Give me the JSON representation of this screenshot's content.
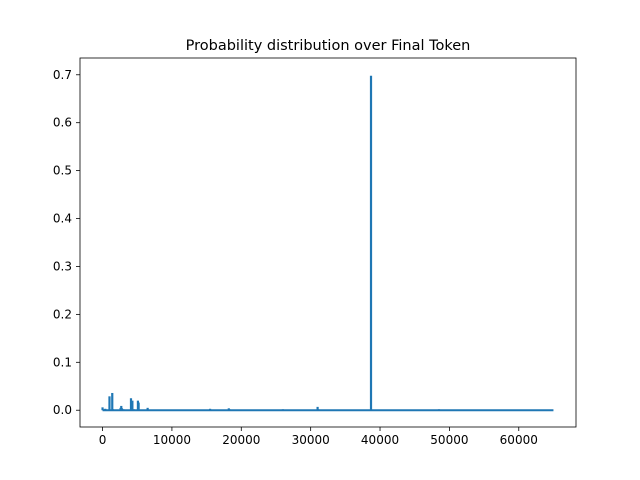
{
  "chart_data": {
    "type": "line",
    "title": "Probability distribution over Final Token",
    "xlabel": "",
    "ylabel": "",
    "xlim": [
      -3250,
      68250
    ],
    "ylim": [
      -0.035,
      0.735
    ],
    "grid": false,
    "legend": "none",
    "line_color": "#1f77b4",
    "x_ticks": [
      0,
      10000,
      20000,
      30000,
      40000,
      50000,
      60000
    ],
    "x_tick_labels": [
      "0",
      "10000",
      "20000",
      "30000",
      "40000",
      "50000",
      "60000"
    ],
    "y_ticks": [
      0.0,
      0.1,
      0.2,
      0.3,
      0.4,
      0.5,
      0.6,
      0.7
    ],
    "y_tick_labels": [
      "0.0",
      "0.1",
      "0.2",
      "0.3",
      "0.4",
      "0.5",
      "0.6",
      "0.7"
    ],
    "x_range": [
      0,
      65000
    ],
    "baseline": 0.0,
    "series": [
      {
        "x": [
          0,
          300,
          400,
          1000,
          1100,
          1300,
          1400,
          1500,
          2200,
          2600,
          2700,
          2800,
          3000,
          3100,
          4100,
          4200,
          4300,
          4500,
          5000,
          5100,
          5200,
          5300,
          6500,
          6600,
          8000,
          12000,
          15500,
          15600,
          18200,
          18300,
          18400,
          20000,
          22000,
          26000,
          26100,
          31000,
          31100,
          31200,
          38700,
          38800,
          38900,
          45000,
          48500,
          48600,
          52000,
          58000,
          65000
        ],
        "y": [
          0.006,
          0.002,
          0.003,
          0.029,
          0.001,
          0.0,
          0.036,
          0.002,
          0.001,
          0.005,
          0.009,
          0.004,
          0.002,
          0.001,
          0.025,
          0.013,
          0.02,
          0.002,
          0.001,
          0.02,
          0.016,
          0.001,
          0.005,
          0.001,
          0.0,
          0.001,
          0.003,
          0.001,
          0.004,
          0.002,
          0.0,
          0.001,
          0.0,
          0.002,
          0.001,
          0.007,
          0.002,
          0.0,
          0.698,
          0.0,
          0.001,
          0.0,
          0.002,
          0.0,
          0.001,
          0.0,
          0.0
        ]
      }
    ]
  }
}
